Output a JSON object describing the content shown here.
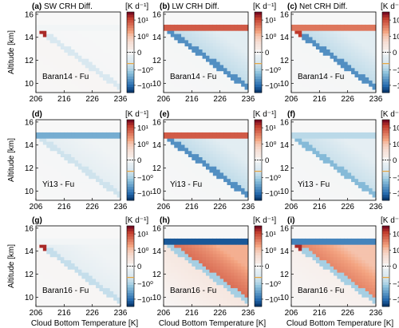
{
  "figure": {
    "column_titles": [
      "SW CRH Diff.",
      "LW CRH Diff.",
      "Net CRH Diff."
    ],
    "ylabel": "Altitude [km]",
    "xlabel": "Cloud Bottom Temperature [K]",
    "colorbar_unit": "[K d⁻¹]",
    "colorbar_ticks": [
      "10¹",
      "10⁰",
      "0",
      "−10⁰",
      "−10¹"
    ],
    "colors": {
      "deep_red": "#67001f",
      "red": "#c0392b",
      "light_red": "#f4a582",
      "white": "#f7f7f7",
      "light_blue": "#92c5de",
      "blue": "#2166ac",
      "deep_blue": "#053061",
      "marker_orange": "#e8a33d"
    }
  },
  "chart_data": [
    {
      "type": "heatmap",
      "panel": "(a)",
      "title": "SW CRH Diff.",
      "label": "Baran14 - Fu",
      "xlabel": "",
      "ylabel": "Altitude [km]",
      "x_ticks": [
        "206",
        "216",
        "226",
        "236"
      ],
      "y_ticks": [
        "10",
        "12",
        "14",
        "16"
      ],
      "xlim": [
        206,
        236
      ],
      "ylim": [
        9.2,
        16.2
      ],
      "pattern": {
        "top_band": -0.05,
        "near_cloud_bottom": -0.3,
        "interior": -0.02,
        "hot_corner": 6,
        "below": 0.03
      }
    },
    {
      "type": "heatmap",
      "panel": "(b)",
      "title": "LW CRH Diff.",
      "label": "Baran14 - Fu",
      "xlabel": "",
      "ylabel": "",
      "x_ticks": [
        "206",
        "216",
        "226",
        "236"
      ],
      "y_ticks": [
        "10",
        "12",
        "14",
        "16"
      ],
      "xlim": [
        206,
        236
      ],
      "ylim": [
        9.2,
        16.2
      ],
      "pattern": {
        "top_band": 3,
        "near_cloud_bottom": -2.5,
        "interior": -0.6,
        "hot_corner": 0,
        "below": -0.03
      }
    },
    {
      "type": "heatmap",
      "panel": "(c)",
      "title": "Net CRH Diff.",
      "label": "Baran14 - Fu",
      "xlabel": "",
      "ylabel": "",
      "x_ticks": [
        "206",
        "216",
        "226",
        "236"
      ],
      "y_ticks": [
        "10",
        "12",
        "14",
        "16"
      ],
      "xlim": [
        206,
        236
      ],
      "ylim": [
        9.2,
        16.2
      ],
      "pattern": {
        "top_band": 2,
        "near_cloud_bottom": -2.5,
        "interior": -0.6,
        "hot_corner": 5,
        "below": -0.03
      }
    },
    {
      "type": "heatmap",
      "panel": "(d)",
      "title": "",
      "label": "Yi13 - Fu",
      "xlabel": "",
      "ylabel": "Altitude [km]",
      "x_ticks": [
        "206",
        "216",
        "226",
        "236"
      ],
      "y_ticks": [
        "10",
        "12",
        "14",
        "16"
      ],
      "xlim": [
        206,
        236
      ],
      "ylim": [
        9.2,
        16.2
      ],
      "pattern": {
        "top_band": -1.5,
        "near_cloud_bottom": -0.4,
        "interior": -0.2,
        "hot_corner": 0,
        "below": -0.02
      }
    },
    {
      "type": "heatmap",
      "panel": "(e)",
      "title": "",
      "label": "Yi13 - Fu",
      "xlabel": "",
      "ylabel": "",
      "x_ticks": [
        "206",
        "216",
        "226",
        "236"
      ],
      "y_ticks": [
        "10",
        "12",
        "14",
        "16"
      ],
      "xlim": [
        206,
        236
      ],
      "ylim": [
        9.2,
        16.2
      ],
      "pattern": {
        "top_band": 3,
        "near_cloud_bottom": -2.5,
        "interior": -0.6,
        "hot_corner": 0,
        "below": -0.03
      }
    },
    {
      "type": "heatmap",
      "panel": "(f)",
      "title": "",
      "label": "Yi13 - Fu",
      "xlabel": "",
      "ylabel": "",
      "x_ticks": [
        "206",
        "216",
        "226",
        "236"
      ],
      "y_ticks": [
        "10",
        "12",
        "14",
        "16"
      ],
      "xlim": [
        206,
        236
      ],
      "ylim": [
        9.2,
        16.2
      ],
      "pattern": {
        "top_band": -0.6,
        "near_cloud_bottom": -1.2,
        "interior": -0.5,
        "hot_corner": 0,
        "below": -0.03
      }
    },
    {
      "type": "heatmap",
      "panel": "(g)",
      "title": "",
      "label": "Baran16 - Fu",
      "xlabel": "Cloud Bottom Temperature [K]",
      "ylabel": "Altitude [km]",
      "x_ticks": [
        "206",
        "216",
        "226",
        "236"
      ],
      "y_ticks": [
        "10",
        "12",
        "14",
        "16"
      ],
      "xlim": [
        206,
        236
      ],
      "ylim": [
        9.2,
        16.2
      ],
      "pattern": {
        "top_band": -0.05,
        "near_cloud_bottom": -0.5,
        "interior": -0.2,
        "hot_corner": 6,
        "below": 0.03
      }
    },
    {
      "type": "heatmap",
      "panel": "(h)",
      "title": "",
      "label": "Baran16 - Fu",
      "xlabel": "Cloud Bottom Temperature [K]",
      "ylabel": "",
      "x_ticks": [
        "206",
        "216",
        "226",
        "236"
      ],
      "y_ticks": [
        "10",
        "12",
        "14",
        "16"
      ],
      "xlim": [
        206,
        236
      ],
      "ylim": [
        9.2,
        16.2
      ],
      "pattern": {
        "top_band": -6,
        "near_cloud_bottom": -0.8,
        "interior": 2.5,
        "hot_corner": 0,
        "below": 0.2
      }
    },
    {
      "type": "heatmap",
      "panel": "(i)",
      "title": "",
      "label": "Baran16 - Fu",
      "xlabel": "Cloud Bottom Temperature [K]",
      "ylabel": "",
      "x_ticks": [
        "206",
        "216",
        "226",
        "236"
      ],
      "y_ticks": [
        "10",
        "12",
        "14",
        "16"
      ],
      "xlim": [
        206,
        236
      ],
      "ylim": [
        9.2,
        16.2
      ],
      "pattern": {
        "top_band": -3,
        "near_cloud_bottom": -0.8,
        "interior": 1.8,
        "hot_corner": 6,
        "below": 0.1
      }
    }
  ]
}
